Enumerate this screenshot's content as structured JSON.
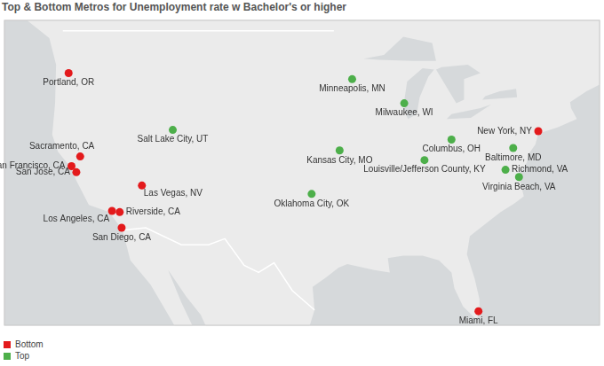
{
  "chart_data": {
    "type": "scatter",
    "title": "Top & Bottom Metros for Unemployment rate w Bachelor's or higher",
    "xlim": [
      -129.4,
      -67.6
    ],
    "ylim": [
      24.6,
      49.9
    ],
    "tick_labels": false,
    "grid": false,
    "legend": "bottom-left",
    "marker": "circle",
    "series": [
      {
        "name": "Bottom",
        "color": "#e31a1c",
        "labels": [
          "Portland, OR",
          "New York, NY",
          "Sacramento, CA",
          "San Francisco, CA",
          "San Jose, CA",
          "Las Vegas, NV",
          "Riverside, CA",
          "Los Angeles, CA",
          "San Diego, CA",
          "Miami, FL"
        ],
        "x": [
          -122.7,
          -74.0,
          -121.5,
          -122.4,
          -121.9,
          -115.1,
          -117.4,
          -118.2,
          -117.2,
          -80.2
        ],
        "values": [
          45.5,
          40.7,
          38.6,
          37.8,
          37.3,
          36.2,
          34.0,
          34.1,
          32.7,
          25.8
        ]
      },
      {
        "name": "Top",
        "color": "#4daf4a",
        "labels": [
          "Minneapolis, MN",
          "Milwaukee, WI",
          "Salt Lake City, UT",
          "Kansas City, MO",
          "Columbus, OH",
          "Baltimore, MD",
          "Louisville/Jefferson County, KY",
          "Oklahoma City, OK",
          "Richmond, VA",
          "Virginia Beach, VA"
        ],
        "x": [
          -93.3,
          -87.9,
          -111.9,
          -94.6,
          -83.0,
          -76.6,
          -85.8,
          -97.5,
          -77.4,
          -76.0
        ],
        "values": [
          45.0,
          43.0,
          40.8,
          39.1,
          40.0,
          39.3,
          38.3,
          35.5,
          37.5,
          36.9
        ]
      }
    ]
  }
}
